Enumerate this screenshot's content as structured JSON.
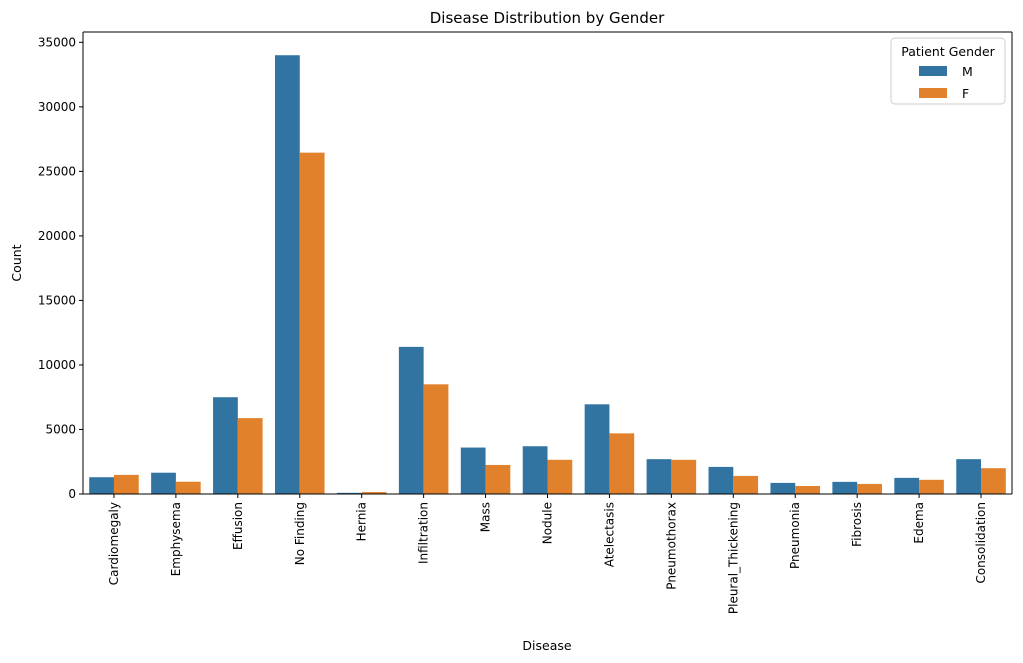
{
  "chart_data": {
    "type": "bar",
    "title": "Disease Distribution by Gender",
    "xlabel": "Disease",
    "ylabel": "Count",
    "ylim": [
      0,
      35800
    ],
    "yticks": [
      0,
      5000,
      10000,
      15000,
      20000,
      25000,
      30000,
      35000
    ],
    "categories": [
      "Cardiomegaly",
      "Emphysema",
      "Effusion",
      "No Finding",
      "Hernia",
      "Infiltration",
      "Mass",
      "Nodule",
      "Atelectasis",
      "Pneumothorax",
      "Pleural_Thickening",
      "Pneumonia",
      "Fibrosis",
      "Edema",
      "Consolidation"
    ],
    "legend": {
      "title": "Patient Gender",
      "position": "top-right"
    },
    "grid": false,
    "series": [
      {
        "name": "M",
        "color": "#3274a1",
        "values": [
          1300,
          1650,
          7500,
          34000,
          90,
          11400,
          3600,
          3700,
          6950,
          2700,
          2100,
          860,
          940,
          1250,
          2700
        ]
      },
      {
        "name": "F",
        "color": "#e1812c",
        "values": [
          1480,
          950,
          5880,
          26450,
          150,
          8500,
          2250,
          2650,
          4700,
          2650,
          1400,
          620,
          780,
          1100,
          2000
        ]
      }
    ]
  }
}
